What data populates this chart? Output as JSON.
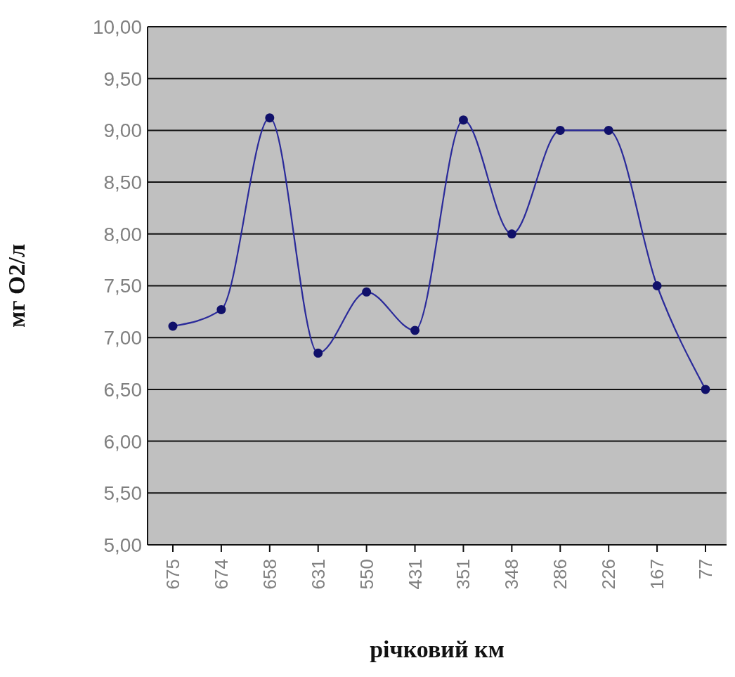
{
  "chart_data": {
    "type": "line",
    "xlabel": "річковий км",
    "ylabel": "мг O2/л",
    "categories": [
      "675",
      "674",
      "658",
      "631",
      "550",
      "431",
      "351",
      "348",
      "286",
      "226",
      "167",
      "77"
    ],
    "series": [
      {
        "color": "#2a2a9a",
        "values": [
          7.11,
          7.27,
          9.12,
          6.85,
          7.44,
          7.07,
          9.1,
          8.0,
          9.0,
          9.0,
          7.5,
          6.5
        ]
      }
    ],
    "ylim": [
      5,
      10
    ],
    "yticks": [
      {
        "value": 5,
        "label": "5,00"
      },
      {
        "value": 5.5,
        "label": "5,50"
      },
      {
        "value": 6,
        "label": "6,00"
      },
      {
        "value": 6.5,
        "label": "6,50"
      },
      {
        "value": 7,
        "label": "7,00"
      },
      {
        "value": 7.5,
        "label": "7,50"
      },
      {
        "value": 8,
        "label": "8,00"
      },
      {
        "value": 8.5,
        "label": "8,50"
      },
      {
        "value": 9,
        "label": "9,00"
      },
      {
        "value": 9.5,
        "label": "9,50"
      },
      {
        "value": 10,
        "label": "10,00"
      }
    ],
    "grid": "y",
    "marker": "circle",
    "line_style": "solid",
    "legend": false
  }
}
